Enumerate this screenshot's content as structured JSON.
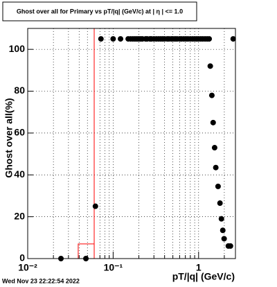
{
  "chart_data": {
    "type": "scatter",
    "title": "Ghost over all for Primary vs pT/|q| (GeV/c) at | η | <= 1.0",
    "x_label": "pT/|q| (GeV/c)",
    "y_label": "Ghost over all(%)",
    "footer": "Wed Nov 23 22:22:54 2022",
    "xscale": "log",
    "xlim": [
      0.01,
      2.7
    ],
    "ylim": [
      0,
      110
    ],
    "xticks": [
      {
        "value": 0.01,
        "label": "10⁻²"
      },
      {
        "value": 0.1,
        "label": "10⁻¹"
      },
      1
    ],
    "xminorticks": [
      0.02,
      0.03,
      0.04,
      0.05,
      0.06,
      0.07,
      0.08,
      0.09,
      0.2,
      0.3,
      0.4,
      0.5,
      0.6,
      0.7,
      0.8,
      0.9,
      2
    ],
    "yticks": [
      0,
      20,
      40,
      60,
      80,
      100
    ],
    "grid": true,
    "series": [
      {
        "color": "#000000",
        "x": [
          0.0245,
          0.048,
          0.062,
          0.072,
          0.1,
          0.122,
          0.15,
          0.16,
          0.17,
          0.18,
          0.19,
          0.2,
          0.21,
          0.22,
          0.24,
          0.25,
          0.27,
          0.28,
          0.3,
          0.32,
          0.34,
          0.36,
          0.38,
          0.4,
          0.43,
          0.45,
          0.48,
          0.5,
          0.53,
          0.56,
          0.6,
          0.63,
          0.67,
          0.71,
          0.75,
          0.8,
          0.85,
          0.9,
          0.95,
          1.0,
          1.06,
          1.12,
          1.19,
          1.26,
          1.33,
          1.37,
          1.43,
          1.48,
          1.54,
          1.59,
          1.69,
          1.78,
          1.85,
          1.92,
          1.99,
          2.23,
          2.36,
          2.54
        ],
        "values": [
          0,
          0,
          25,
          105,
          105,
          105,
          105,
          105,
          105,
          105,
          105,
          105,
          105,
          105,
          105,
          105,
          105,
          105,
          105,
          105,
          105,
          105,
          105,
          105,
          105,
          105,
          105,
          105,
          105,
          105,
          105,
          105,
          105,
          105,
          105,
          105,
          105,
          105,
          105,
          105,
          105,
          105,
          105,
          105,
          105,
          92,
          78,
          65,
          53,
          43.5,
          34.5,
          26.5,
          19,
          13.5,
          9.5,
          6,
          6,
          105
        ]
      }
    ],
    "histogram": {
      "color": "#ff0000",
      "bins": [
        0.01,
        0.039,
        0.06,
        2.7
      ],
      "counts": [
        0,
        7,
        110
      ]
    }
  }
}
